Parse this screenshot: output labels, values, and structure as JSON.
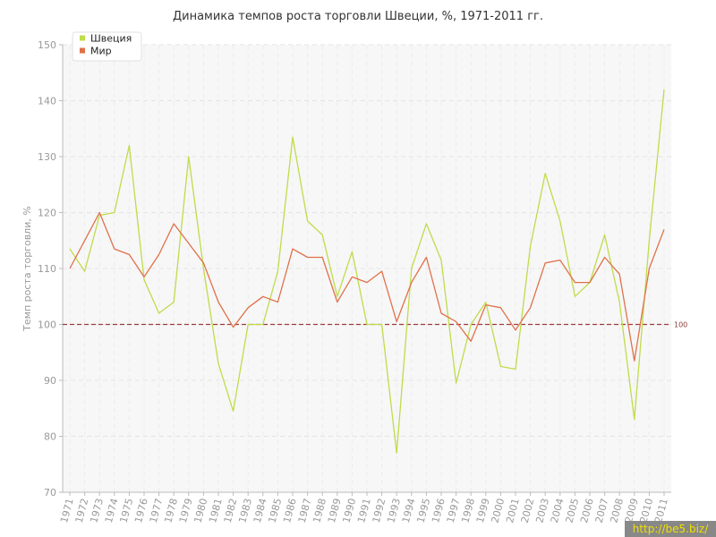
{
  "chart_data": {
    "type": "line",
    "title": "Динамика темпов роста торговли Швеции, %, 1971-2011 гг.",
    "ylabel": "Темп роста торговли, %",
    "xlabel": "",
    "ylim": [
      70,
      150
    ],
    "yticks": [
      70,
      80,
      90,
      100,
      110,
      120,
      130,
      140,
      150
    ],
    "grid": true,
    "legend_position": "top-left",
    "categories": [
      "1971",
      "1972",
      "1973",
      "1974",
      "1975",
      "1976",
      "1977",
      "1978",
      "1979",
      "1980",
      "1981",
      "1982",
      "1983",
      "1984",
      "1985",
      "1986",
      "1987",
      "1988",
      "1989",
      "1990",
      "1991",
      "1992",
      "1993",
      "1994",
      "1995",
      "1996",
      "1997",
      "1998",
      "1999",
      "2000",
      "2001",
      "2002",
      "2003",
      "2004",
      "2005",
      "2006",
      "2007",
      "2008",
      "2009",
      "2010",
      "2011"
    ],
    "series": [
      {
        "name": "Швеция",
        "color": "#bfdc4a",
        "values": [
          113.5,
          109.5,
          119.5,
          120,
          132,
          108,
          102,
          104,
          130,
          110,
          93,
          84.5,
          100,
          100,
          109.5,
          133.5,
          118.5,
          116,
          105,
          113,
          100,
          100,
          77,
          110,
          118,
          111.5,
          89.5,
          100,
          104,
          92.5,
          92,
          114,
          127,
          118.5,
          105,
          107.5,
          116,
          104,
          83,
          115,
          142
        ]
      },
      {
        "name": "Мир",
        "color": "#e0714a",
        "values": [
          110,
          115,
          120,
          113.5,
          112.5,
          108.5,
          112.5,
          118,
          114.5,
          111,
          104,
          99.5,
          103,
          105,
          104,
          113.5,
          112,
          112,
          104,
          108.5,
          107.5,
          109.5,
          100.5,
          107.5,
          112,
          102,
          100.5,
          97,
          103.5,
          103,
          99,
          103,
          111,
          111.5,
          107.5,
          107.5,
          112,
          109,
          93.5,
          110,
          117
        ]
      }
    ],
    "reference_line": {
      "value": 100,
      "label": "100",
      "color": "#a03c3c"
    }
  },
  "watermark": "http://be5.biz/"
}
